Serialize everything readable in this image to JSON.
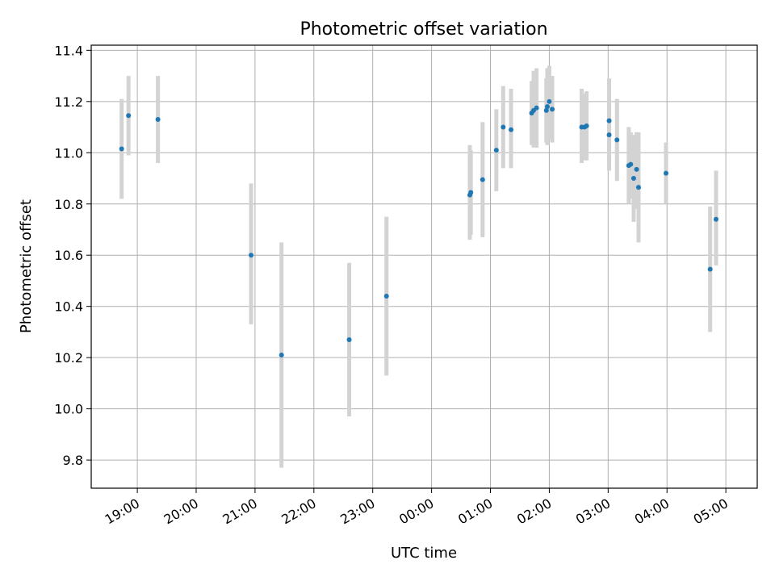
{
  "chart_data": {
    "type": "scatter",
    "title": "Photometric offset variation",
    "xlabel": "UTC time",
    "ylabel": "Photometric offset",
    "xlim": [
      "18:13",
      "05:32"
    ],
    "ylim": [
      9.69,
      11.42
    ],
    "grid": true,
    "x_ticks": [
      "19:00",
      "20:00",
      "21:00",
      "22:00",
      "23:00",
      "00:00",
      "01:00",
      "02:00",
      "03:00",
      "04:00",
      "05:00"
    ],
    "y_ticks": [
      "9.8",
      "10.0",
      "10.2",
      "10.4",
      "10.6",
      "10.8",
      "11.0",
      "11.2",
      "11.4"
    ],
    "colors": {
      "point": "#1f77b4",
      "errorbar": "#d3d3d3",
      "grid": "#b0b0b0"
    },
    "points": [
      {
        "x": "18:44",
        "y": 11.015,
        "ylow": 10.82,
        "yhigh": 11.21
      },
      {
        "x": "18:51",
        "y": 11.145,
        "ylow": 10.99,
        "yhigh": 11.3
      },
      {
        "x": "19:21",
        "y": 11.13,
        "ylow": 10.96,
        "yhigh": 11.3
      },
      {
        "x": "20:56",
        "y": 10.6,
        "ylow": 10.33,
        "yhigh": 10.88
      },
      {
        "x": "21:27",
        "y": 10.21,
        "ylow": 9.77,
        "yhigh": 10.65
      },
      {
        "x": "22:36",
        "y": 10.27,
        "ylow": 9.97,
        "yhigh": 10.57
      },
      {
        "x": "23:14",
        "y": 10.44,
        "ylow": 10.13,
        "yhigh": 10.75
      },
      {
        "x": "00:39",
        "y": 10.835,
        "ylow": 10.66,
        "yhigh": 11.03
      },
      {
        "x": "00:40",
        "y": 10.845,
        "ylow": 10.68,
        "yhigh": 11.01
      },
      {
        "x": "00:52",
        "y": 10.895,
        "ylow": 10.67,
        "yhigh": 11.12
      },
      {
        "x": "01:06",
        "y": 11.01,
        "ylow": 10.85,
        "yhigh": 11.17
      },
      {
        "x": "01:13",
        "y": 11.1,
        "ylow": 10.94,
        "yhigh": 11.26
      },
      {
        "x": "01:21",
        "y": 11.09,
        "ylow": 10.94,
        "yhigh": 11.25
      },
      {
        "x": "01:42",
        "y": 11.155,
        "ylow": 11.03,
        "yhigh": 11.28
      },
      {
        "x": "01:44",
        "y": 11.165,
        "ylow": 11.02,
        "yhigh": 11.32
      },
      {
        "x": "01:47",
        "y": 11.175,
        "ylow": 11.02,
        "yhigh": 11.33
      },
      {
        "x": "01:57",
        "y": 11.165,
        "ylow": 11.04,
        "yhigh": 11.29
      },
      {
        "x": "01:58",
        "y": 11.18,
        "ylow": 11.03,
        "yhigh": 11.33
      },
      {
        "x": "02:00",
        "y": 11.2,
        "ylow": 11.05,
        "yhigh": 11.34
      },
      {
        "x": "02:03",
        "y": 11.17,
        "ylow": 11.04,
        "yhigh": 11.3
      },
      {
        "x": "02:33",
        "y": 11.1,
        "ylow": 10.96,
        "yhigh": 11.25
      },
      {
        "x": "02:36",
        "y": 11.1,
        "ylow": 10.97,
        "yhigh": 11.23
      },
      {
        "x": "02:38",
        "y": 11.105,
        "ylow": 10.97,
        "yhigh": 11.24
      },
      {
        "x": "03:01",
        "y": 11.125,
        "ylow": 10.96,
        "yhigh": 11.29
      },
      {
        "x": "03:01",
        "y": 11.07,
        "ylow": 10.93,
        "yhigh": 11.21
      },
      {
        "x": "03:09",
        "y": 11.05,
        "ylow": 10.89,
        "yhigh": 11.21
      },
      {
        "x": "03:21",
        "y": 10.95,
        "ylow": 10.8,
        "yhigh": 11.1
      },
      {
        "x": "03:23",
        "y": 10.955,
        "ylow": 10.82,
        "yhigh": 11.08
      },
      {
        "x": "03:26",
        "y": 10.9,
        "ylow": 10.73,
        "yhigh": 11.07
      },
      {
        "x": "03:29",
        "y": 10.935,
        "ylow": 10.78,
        "yhigh": 11.08
      },
      {
        "x": "03:31",
        "y": 10.865,
        "ylow": 10.65,
        "yhigh": 11.08
      },
      {
        "x": "03:59",
        "y": 10.92,
        "ylow": 10.8,
        "yhigh": 11.04
      },
      {
        "x": "04:44",
        "y": 10.545,
        "ylow": 10.3,
        "yhigh": 10.79
      },
      {
        "x": "04:50",
        "y": 10.74,
        "ylow": 10.56,
        "yhigh": 10.93
      }
    ]
  }
}
